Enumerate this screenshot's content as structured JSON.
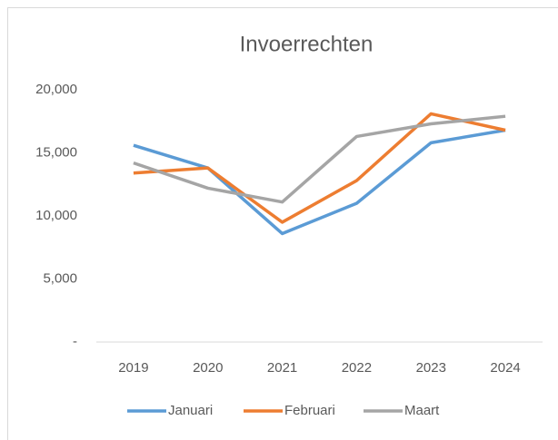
{
  "chart_data": {
    "type": "line",
    "title": "Invoerrechten",
    "categories": [
      "2019",
      "2020",
      "2021",
      "2022",
      "2023",
      "2024"
    ],
    "series": [
      {
        "name": "Januari",
        "color": "#5b9bd5",
        "values": [
          15600,
          13800,
          8600,
          11000,
          15800,
          16800
        ]
      },
      {
        "name": "Februari",
        "color": "#ed7d31",
        "values": [
          13400,
          13800,
          9500,
          12800,
          18100,
          16800
        ]
      },
      {
        "name": "Maart",
        "color": "#a5a5a5",
        "values": [
          14200,
          12200,
          11100,
          16300,
          17300,
          17900
        ]
      }
    ],
    "ylim": [
      0,
      20000
    ],
    "yticks": [
      {
        "value": 0,
        "label": "-"
      },
      {
        "value": 5000,
        "label": "5,000"
      },
      {
        "value": 10000,
        "label": "10,000"
      },
      {
        "value": 15000,
        "label": "15,000"
      },
      {
        "value": 20000,
        "label": "20,000"
      }
    ],
    "grid": false,
    "legend": "bottom"
  }
}
